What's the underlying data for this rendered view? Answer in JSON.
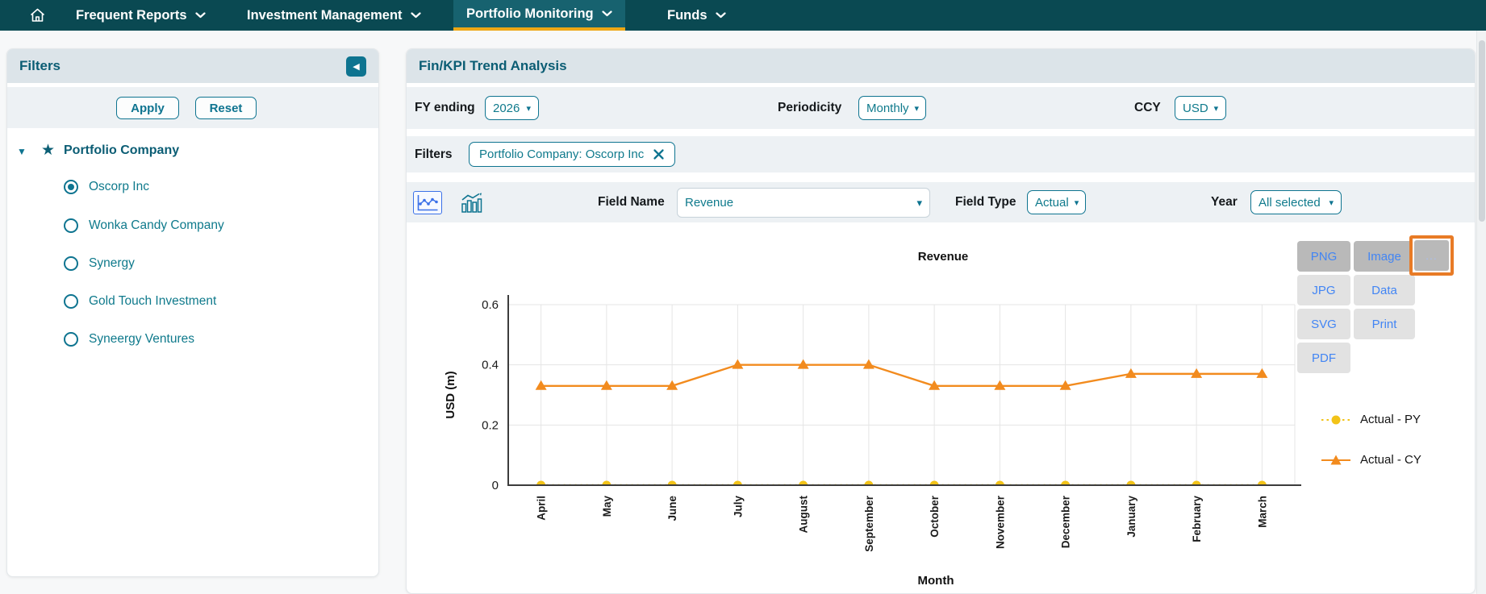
{
  "nav": {
    "items": [
      {
        "label": "Frequent Reports"
      },
      {
        "label": "Investment Management"
      },
      {
        "label": "Portfolio Monitoring"
      },
      {
        "label": "Funds"
      }
    ]
  },
  "sidebar": {
    "title": "Filters",
    "apply": "Apply",
    "reset": "Reset",
    "tree": {
      "group_label": "Portfolio Company",
      "options": [
        {
          "label": "Oscorp Inc",
          "selected": true
        },
        {
          "label": "Wonka Candy Company",
          "selected": false
        },
        {
          "label": "Synergy",
          "selected": false
        },
        {
          "label": "Gold Touch Investment",
          "selected": false
        },
        {
          "label": "Syneergy Ventures",
          "selected": false
        }
      ]
    }
  },
  "main": {
    "title": "Fin/KPI Trend Analysis",
    "fy_label": "FY ending",
    "fy_value": "2026",
    "periodicity_label": "Periodicity",
    "periodicity_value": "Monthly",
    "ccy_label": "CCY",
    "ccy_value": "USD",
    "filters_label": "Filters",
    "filter_chip": "Portfolio Company: Oscorp Inc",
    "field_name_label": "Field Name",
    "field_name_value": "Revenue",
    "field_type_label": "Field Type",
    "field_type_value": "Actual",
    "year_label": "Year",
    "year_value": "All selected"
  },
  "export_menu": {
    "png": "PNG",
    "image": "Image",
    "more": "...",
    "jpg": "JPG",
    "data": "Data",
    "svg": "SVG",
    "print": "Print",
    "pdf": "PDF"
  },
  "chart_data": {
    "type": "line",
    "title": "Revenue",
    "xlabel": "Month",
    "ylabel": "USD (m)",
    "ylim": [
      0,
      0.6
    ],
    "yticks": [
      0,
      0.2,
      0.4,
      0.6
    ],
    "categories": [
      "April",
      "May",
      "June",
      "July",
      "August",
      "September",
      "October",
      "November",
      "December",
      "January",
      "February",
      "March"
    ],
    "series": [
      {
        "name": "Actual - PY",
        "color": "#F2C318",
        "marker": "circle",
        "line_style": "dotted",
        "values": [
          0,
          0,
          0,
          0,
          0,
          0,
          0,
          0,
          0,
          0,
          0,
          0
        ]
      },
      {
        "name": "Actual - CY",
        "color": "#F28B1E",
        "marker": "triangle",
        "line_style": "solid",
        "values": [
          0.33,
          0.33,
          0.33,
          0.4,
          0.4,
          0.4,
          0.33,
          0.33,
          0.33,
          0.37,
          0.37,
          0.37
        ]
      }
    ],
    "grid": true,
    "legend_position": "right"
  },
  "colors": {
    "nav_bg": "#0A4952",
    "nav_active_bg": "#17626F",
    "nav_underline": "#EDA715",
    "accent_teal": "#0E7490",
    "header_bg": "#DCE4E9",
    "row_bg": "#EDF1F4",
    "export_text": "#4285F4",
    "highlight_orange": "#E87B26",
    "series_py": "#F2C318",
    "series_cy": "#F28B1E"
  }
}
